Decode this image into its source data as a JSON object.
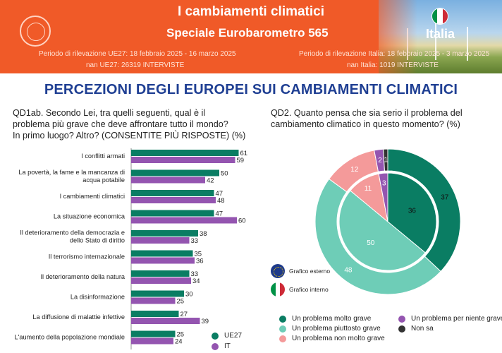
{
  "header": {
    "title": "I cambiamenti climatici",
    "subtitle": "Speciale Eurobarometro 565",
    "country": "Italia",
    "period_eu": "Periodo di rilevazione UE27: 18 febbraio 2025 - 16 marzo 2025",
    "sample_eu": "nan UE27: 26319 INTERVISTE",
    "period_it": "Periodo di rilevazione Italia: 18 febbraio 2025 - 3 marzo 2025",
    "sample_it": "nan Italia: 1019 INTERVISTE"
  },
  "main_title": "PERCEZIONI DEGLI EUROPEI SUI CAMBIAMENTI CLIMATICI",
  "q1": {
    "text_line1": "QD1ab. Secondo Lei, tra quelli seguenti, qual è il",
    "text_line2": "problema più grave che deve affrontare tutto il mondo?",
    "text_line3": "In primo luogo? Altro? (CONSENTITE PIÙ RISPOSTE) (%)"
  },
  "q2": {
    "text_line1": "QD2. Quanto pensa che sia serio il problema del",
    "text_line2": "cambiamento climatico in questo momento? (%)"
  },
  "colors": {
    "eu": "#0a7d63",
    "it": "#9455b0",
    "molto_grave": "#0a7d63",
    "piuttosto_grave": "#6ecdb7",
    "non_molto_grave": "#f49a9a",
    "per_niente_grave": "#9455b0",
    "non_sa": "#333333"
  },
  "chart_data": [
    {
      "type": "bar",
      "orientation": "horizontal",
      "categories": [
        "I conflitti armati",
        "La povertà, la fame e la mancanza di acqua potabile",
        "I cambiamenti climatici",
        "La situazione economica",
        "Il deterioramento della democrazia e dello Stato di diritto",
        "Il terrorismo internazionale",
        "Il deterioramento della natura",
        "La disinformazione",
        "La diffusione di malattie infettive",
        "L'aumento della popolazione mondiale"
      ],
      "category_lines": [
        [
          "I conflitti armati"
        ],
        [
          "La povertà, la fame e la mancanza di",
          "acqua potabile"
        ],
        [
          "I cambiamenti climatici"
        ],
        [
          "La situazione economica"
        ],
        [
          "Il deterioramento della democrazia e",
          "dello Stato di diritto"
        ],
        [
          "Il terrorismo internazionale"
        ],
        [
          "Il deterioramento della natura"
        ],
        [
          "La disinformazione"
        ],
        [
          "La diffusione di malattie infettive"
        ],
        [
          "L'aumento della popolazione mondiale"
        ]
      ],
      "series": [
        {
          "name": "UE27",
          "values": [
            61,
            50,
            47,
            47,
            38,
            35,
            33,
            30,
            27,
            25
          ]
        },
        {
          "name": "IT",
          "values": [
            59,
            42,
            48,
            60,
            33,
            36,
            34,
            25,
            39,
            24
          ]
        }
      ],
      "xlim": [
        0,
        62
      ]
    },
    {
      "type": "pie",
      "variant": "nested-donut",
      "categories": [
        "Un problema molto grave",
        "Un problema piuttosto grave",
        "Un problema non molto grave",
        "Un problema per niente grave",
        "Non sa"
      ],
      "series": [
        {
          "name": "Grafico esterno",
          "values": [
            37,
            48,
            12,
            2,
            1
          ]
        },
        {
          "name": "Grafico interno",
          "values": [
            36,
            50,
            11,
            3,
            0
          ]
        }
      ],
      "inner_labels": [
        "36",
        "50",
        "11",
        "3"
      ],
      "legend": "bottom"
    }
  ]
}
